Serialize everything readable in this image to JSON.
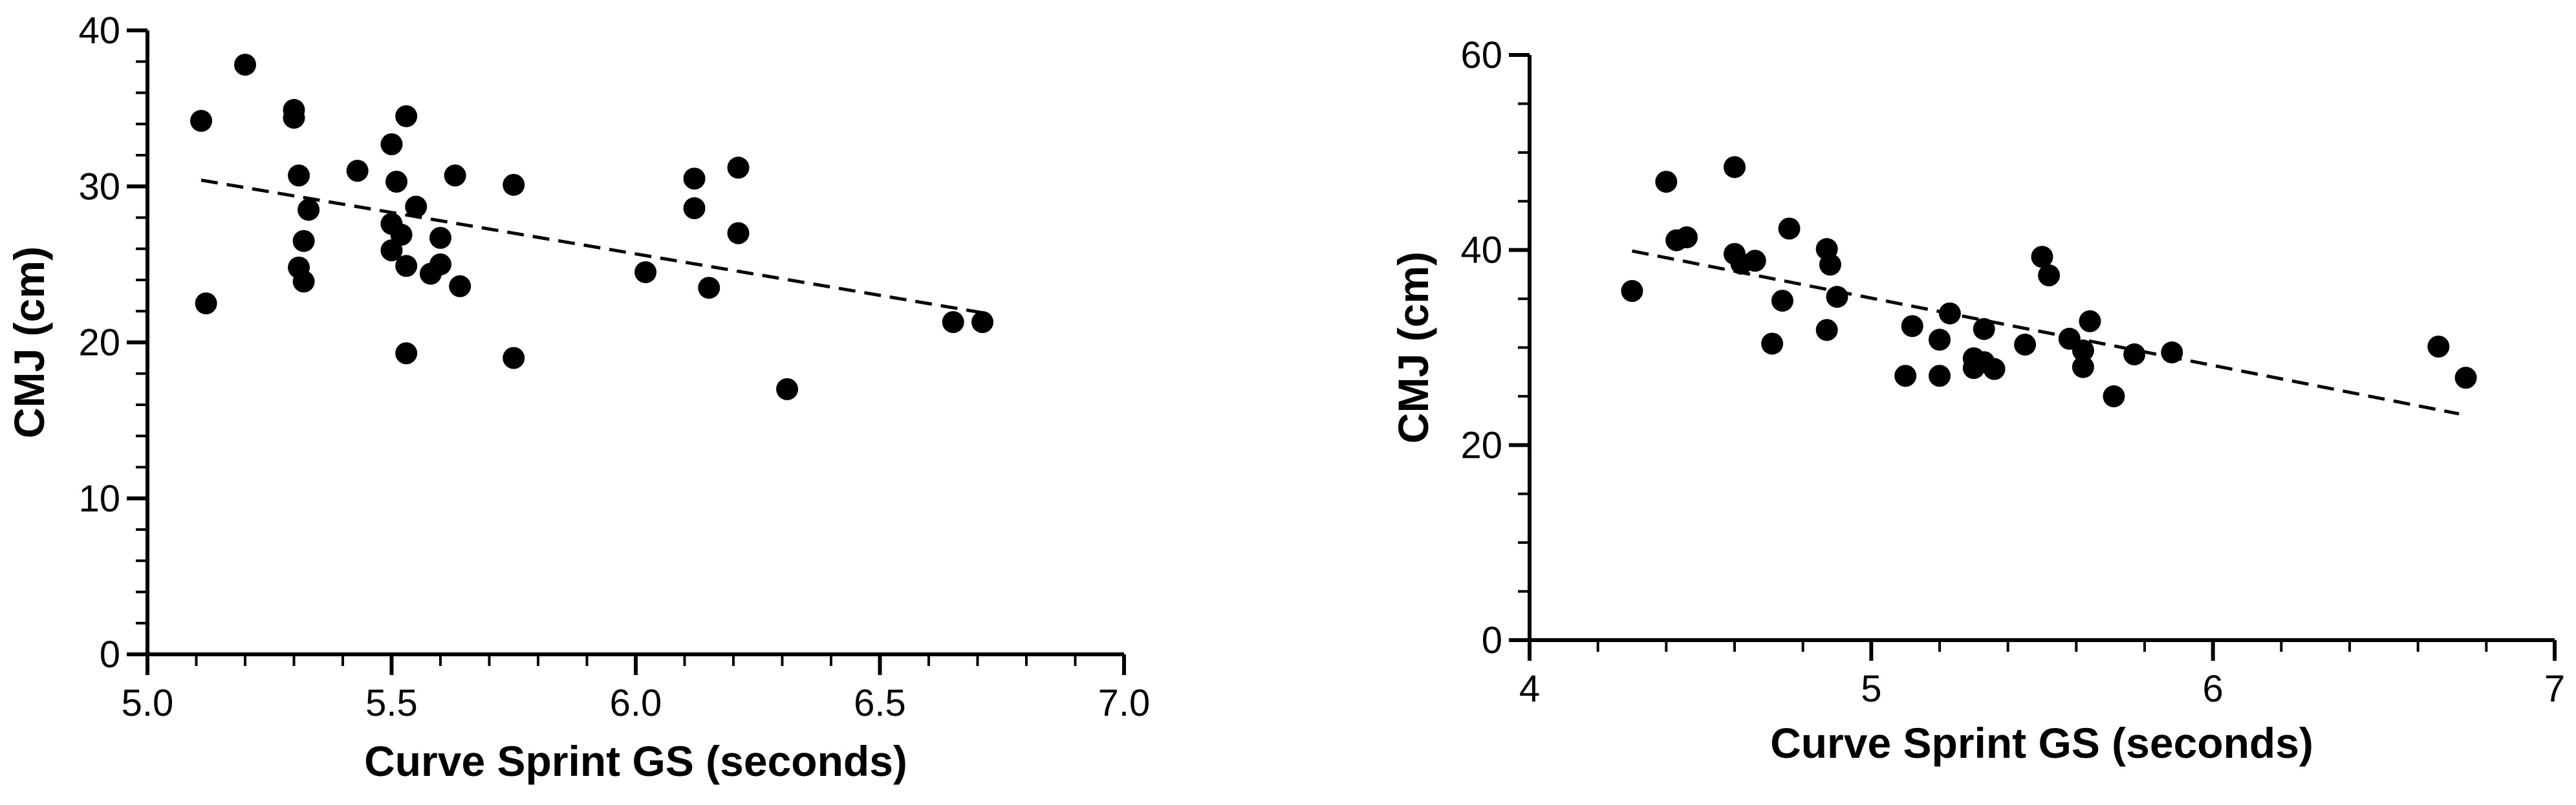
{
  "chart_data": [
    {
      "type": "scatter",
      "title": "",
      "xlabel": "Curve Sprint GS (seconds)",
      "ylabel": "CMJ (cm)",
      "xlim": [
        5.0,
        7.0
      ],
      "ylim": [
        0,
        40
      ],
      "x_ticks": [
        "5.0",
        "5.5",
        "6.0",
        "6.5",
        "7.0"
      ],
      "x_tick_values": [
        5.0,
        5.5,
        6.0,
        6.5,
        7.0
      ],
      "x_minor_step": 0.1,
      "y_ticks": [
        "0",
        "10",
        "20",
        "30",
        "40"
      ],
      "y_tick_values": [
        0,
        10,
        20,
        30,
        40
      ],
      "y_minor_step": 2,
      "grid": false,
      "marker_color": "#000000",
      "points": [
        [
          5.11,
          34.2
        ],
        [
          5.12,
          22.5
        ],
        [
          5.2,
          37.8
        ],
        [
          5.3,
          34.9
        ],
        [
          5.3,
          34.4
        ],
        [
          5.31,
          30.7
        ],
        [
          5.31,
          24.8
        ],
        [
          5.32,
          26.5
        ],
        [
          5.33,
          28.5
        ],
        [
          5.32,
          23.9
        ],
        [
          5.43,
          31.0
        ],
        [
          5.5,
          32.7
        ],
        [
          5.51,
          30.3
        ],
        [
          5.5,
          27.6
        ],
        [
          5.5,
          25.9
        ],
        [
          5.52,
          26.9
        ],
        [
          5.53,
          24.9
        ],
        [
          5.53,
          34.5
        ],
        [
          5.55,
          28.7
        ],
        [
          5.53,
          19.3
        ],
        [
          5.58,
          24.4
        ],
        [
          5.6,
          26.7
        ],
        [
          5.6,
          25.0
        ],
        [
          5.63,
          30.7
        ],
        [
          5.64,
          23.6
        ],
        [
          5.75,
          30.1
        ],
        [
          5.75,
          19.0
        ],
        [
          6.02,
          24.5
        ],
        [
          6.12,
          30.5
        ],
        [
          6.12,
          28.6
        ],
        [
          6.15,
          23.5
        ],
        [
          6.21,
          31.2
        ],
        [
          6.21,
          27.0
        ],
        [
          6.31,
          17.0
        ],
        [
          6.65,
          21.3
        ],
        [
          6.71,
          21.3
        ]
      ],
      "trendline": {
        "style": "dashed",
        "x": [
          5.11,
          6.71
        ],
        "y": [
          30.4,
          21.9
        ]
      }
    },
    {
      "type": "scatter",
      "title": "",
      "xlabel": "Curve Sprint GS (seconds)",
      "ylabel": "CMJ (cm)",
      "xlim": [
        4,
        7
      ],
      "ylim": [
        0,
        60
      ],
      "x_ticks": [
        "4",
        "5",
        "6",
        "7"
      ],
      "x_tick_values": [
        4,
        5,
        6,
        7
      ],
      "x_minor_step": 0.2,
      "y_ticks": [
        "0",
        "20",
        "40",
        "60"
      ],
      "y_tick_values": [
        0,
        20,
        40,
        60
      ],
      "y_minor_step": 5,
      "grid": false,
      "marker_color": "#000000",
      "points": [
        [
          4.3,
          35.8
        ],
        [
          4.4,
          47.0
        ],
        [
          4.43,
          41.0
        ],
        [
          4.46,
          41.3
        ],
        [
          4.6,
          48.5
        ],
        [
          4.6,
          39.6
        ],
        [
          4.62,
          38.6
        ],
        [
          4.66,
          38.9
        ],
        [
          4.71,
          30.4
        ],
        [
          4.74,
          34.8
        ],
        [
          4.76,
          42.2
        ],
        [
          4.87,
          40.1
        ],
        [
          4.88,
          38.5
        ],
        [
          4.87,
          31.8
        ],
        [
          4.9,
          35.2
        ],
        [
          5.1,
          27.1
        ],
        [
          5.12,
          32.2
        ],
        [
          5.2,
          30.8
        ],
        [
          5.2,
          27.1
        ],
        [
          5.23,
          33.5
        ],
        [
          5.3,
          28.9
        ],
        [
          5.3,
          27.9
        ],
        [
          5.33,
          31.9
        ],
        [
          5.33,
          28.5
        ],
        [
          5.36,
          27.8
        ],
        [
          5.45,
          30.3
        ],
        [
          5.5,
          39.3
        ],
        [
          5.52,
          37.4
        ],
        [
          5.58,
          30.9
        ],
        [
          5.62,
          29.7
        ],
        [
          5.62,
          28.0
        ],
        [
          5.64,
          32.7
        ],
        [
          5.71,
          25.0
        ],
        [
          5.77,
          29.3
        ],
        [
          5.88,
          29.5
        ],
        [
          6.66,
          30.1
        ],
        [
          6.74,
          26.9
        ]
      ],
      "trendline": {
        "style": "dashed",
        "x": [
          4.3,
          6.72
        ],
        "y": [
          39.9,
          23.2
        ]
      }
    }
  ]
}
